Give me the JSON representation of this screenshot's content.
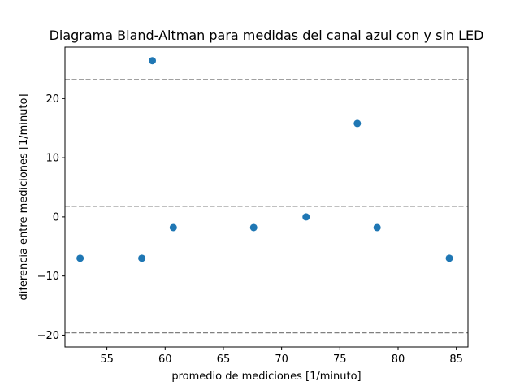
{
  "chart_data": {
    "type": "scatter",
    "title": "Diagrama Bland-Altman para medidas del canal azul con y sin LED",
    "xlabel": "promedio de mediciones [1/minuto]",
    "ylabel": "diferencia entre mediciones [1/minuto]",
    "xlim": [
      51.4,
      86.0
    ],
    "ylim": [
      -22.0,
      28.7
    ],
    "x_ticks": [
      55,
      60,
      65,
      70,
      75,
      80,
      85
    ],
    "x_tick_labels": [
      "55",
      "60",
      "65",
      "70",
      "75",
      "80",
      "85"
    ],
    "y_ticks": [
      -20,
      -10,
      0,
      10,
      20
    ],
    "y_tick_labels": [
      "−20",
      "−10",
      "0",
      "10",
      "20"
    ],
    "grid": false,
    "series": [
      {
        "name": "diferencias",
        "color": "#1f77b4",
        "marker": "circle",
        "x": [
          52.7,
          58.0,
          58.9,
          60.7,
          67.6,
          72.1,
          76.5,
          78.2,
          84.4
        ],
        "y": [
          -7.0,
          -7.0,
          26.4,
          -1.8,
          -1.8,
          0.0,
          15.8,
          -1.8,
          -7.0
        ]
      }
    ],
    "reference_lines": [
      {
        "name": "upper-limit-of-agreement",
        "y": 23.2,
        "color": "#808080",
        "style": "dashed"
      },
      {
        "name": "mean-difference",
        "y": 1.8,
        "color": "#808080",
        "style": "dashed"
      },
      {
        "name": "lower-limit-of-agreement",
        "y": -19.6,
        "color": "#808080",
        "style": "dashed"
      }
    ]
  }
}
